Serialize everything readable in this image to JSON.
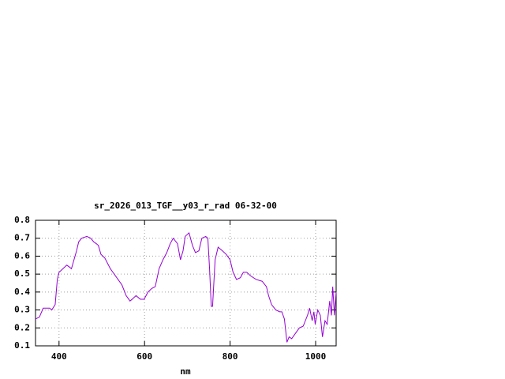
{
  "chart_data": {
    "type": "line",
    "title": "sr_2026_013_TGF__y03_r_rad 06-32-00",
    "x_label": "nm",
    "xlim": [
      345,
      1048
    ],
    "xticks": [
      400,
      600,
      800,
      1000
    ],
    "ylim": [
      0.1,
      0.8
    ],
    "yticks": [
      0.1,
      0.2,
      0.3,
      0.4,
      0.5,
      0.6,
      0.7,
      0.8
    ],
    "grid": true,
    "series": [
      {
        "color": "#9400d3",
        "x": [
          345,
          354,
          363,
          372,
          378,
          383,
          391,
          396,
          400,
          409,
          418,
          424,
          429,
          435,
          441,
          446,
          453,
          465,
          474,
          481,
          487,
          492,
          498,
          507,
          520,
          529,
          538,
          547,
          557,
          566,
          571,
          580,
          590,
          599,
          608,
          617,
          625,
          634,
          643,
          652,
          660,
          667,
          677,
          684,
          690,
          695,
          704,
          712,
          719,
          727,
          734,
          743,
          748,
          752,
          756,
          759,
          765,
          772,
          782,
          791,
          800,
          807,
          815,
          824,
          831,
          839,
          848,
          861,
          875,
          885,
          890,
          897,
          907,
          916,
          921,
          927,
          933,
          938,
          944,
          953,
          962,
          971,
          981,
          986,
          992,
          996,
          999,
          1005,
          1011,
          1016,
          1022,
          1027,
          1033,
          1037,
          1040,
          1044,
          1048
        ],
        "values": [
          0.25,
          0.26,
          0.31,
          0.31,
          0.31,
          0.3,
          0.33,
          0.47,
          0.51,
          0.53,
          0.55,
          0.54,
          0.53,
          0.58,
          0.63,
          0.68,
          0.7,
          0.71,
          0.7,
          0.68,
          0.67,
          0.66,
          0.61,
          0.59,
          0.53,
          0.5,
          0.47,
          0.44,
          0.38,
          0.35,
          0.36,
          0.38,
          0.36,
          0.36,
          0.4,
          0.42,
          0.43,
          0.53,
          0.58,
          0.62,
          0.67,
          0.7,
          0.67,
          0.58,
          0.63,
          0.71,
          0.73,
          0.66,
          0.62,
          0.63,
          0.7,
          0.71,
          0.7,
          0.53,
          0.32,
          0.32,
          0.58,
          0.65,
          0.63,
          0.61,
          0.58,
          0.51,
          0.47,
          0.48,
          0.51,
          0.51,
          0.49,
          0.47,
          0.46,
          0.43,
          0.38,
          0.33,
          0.3,
          0.29,
          0.29,
          0.25,
          0.12,
          0.15,
          0.14,
          0.17,
          0.2,
          0.21,
          0.27,
          0.31,
          0.24,
          0.29,
          0.22,
          0.3,
          0.27,
          0.15,
          0.24,
          0.22,
          0.35,
          0.27,
          0.43,
          0.27,
          0.4
        ]
      }
    ]
  }
}
